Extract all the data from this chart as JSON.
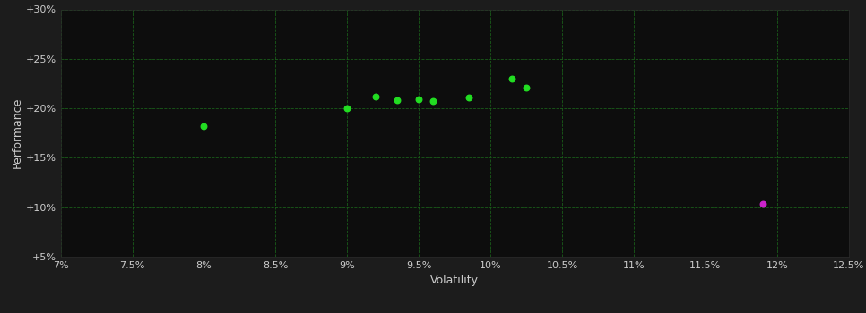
{
  "background_color": "#1c1c1c",
  "plot_bg_color": "#0d0d0d",
  "grid_color": "#1a5c1a",
  "text_color": "#cccccc",
  "xlabel": "Volatility",
  "ylabel": "Performance",
  "xlim": [
    0.07,
    0.125
  ],
  "ylim": [
    0.05,
    0.3
  ],
  "xticks": [
    0.07,
    0.075,
    0.08,
    0.085,
    0.09,
    0.095,
    0.1,
    0.105,
    0.11,
    0.115,
    0.12,
    0.125
  ],
  "xtick_labels": [
    "7%",
    "7.5%",
    "8%",
    "8.5%",
    "9%",
    "9.5%",
    "10%",
    "10.5%",
    "11%",
    "11.5%",
    "12%",
    "12.5%"
  ],
  "yticks": [
    0.05,
    0.1,
    0.15,
    0.2,
    0.25,
    0.3
  ],
  "ytick_labels": [
    "+5%",
    "+10%",
    "+15%",
    "+20%",
    "+25%",
    "+30%"
  ],
  "green_points": [
    [
      0.08,
      0.182
    ],
    [
      0.09,
      0.2
    ],
    [
      0.092,
      0.212
    ],
    [
      0.0935,
      0.208
    ],
    [
      0.095,
      0.209
    ],
    [
      0.096,
      0.207
    ],
    [
      0.0985,
      0.211
    ],
    [
      0.1015,
      0.23
    ],
    [
      0.1025,
      0.221
    ]
  ],
  "magenta_points": [
    [
      0.119,
      0.103
    ]
  ],
  "green_color": "#22dd22",
  "magenta_color": "#cc22cc",
  "marker_size": 22
}
